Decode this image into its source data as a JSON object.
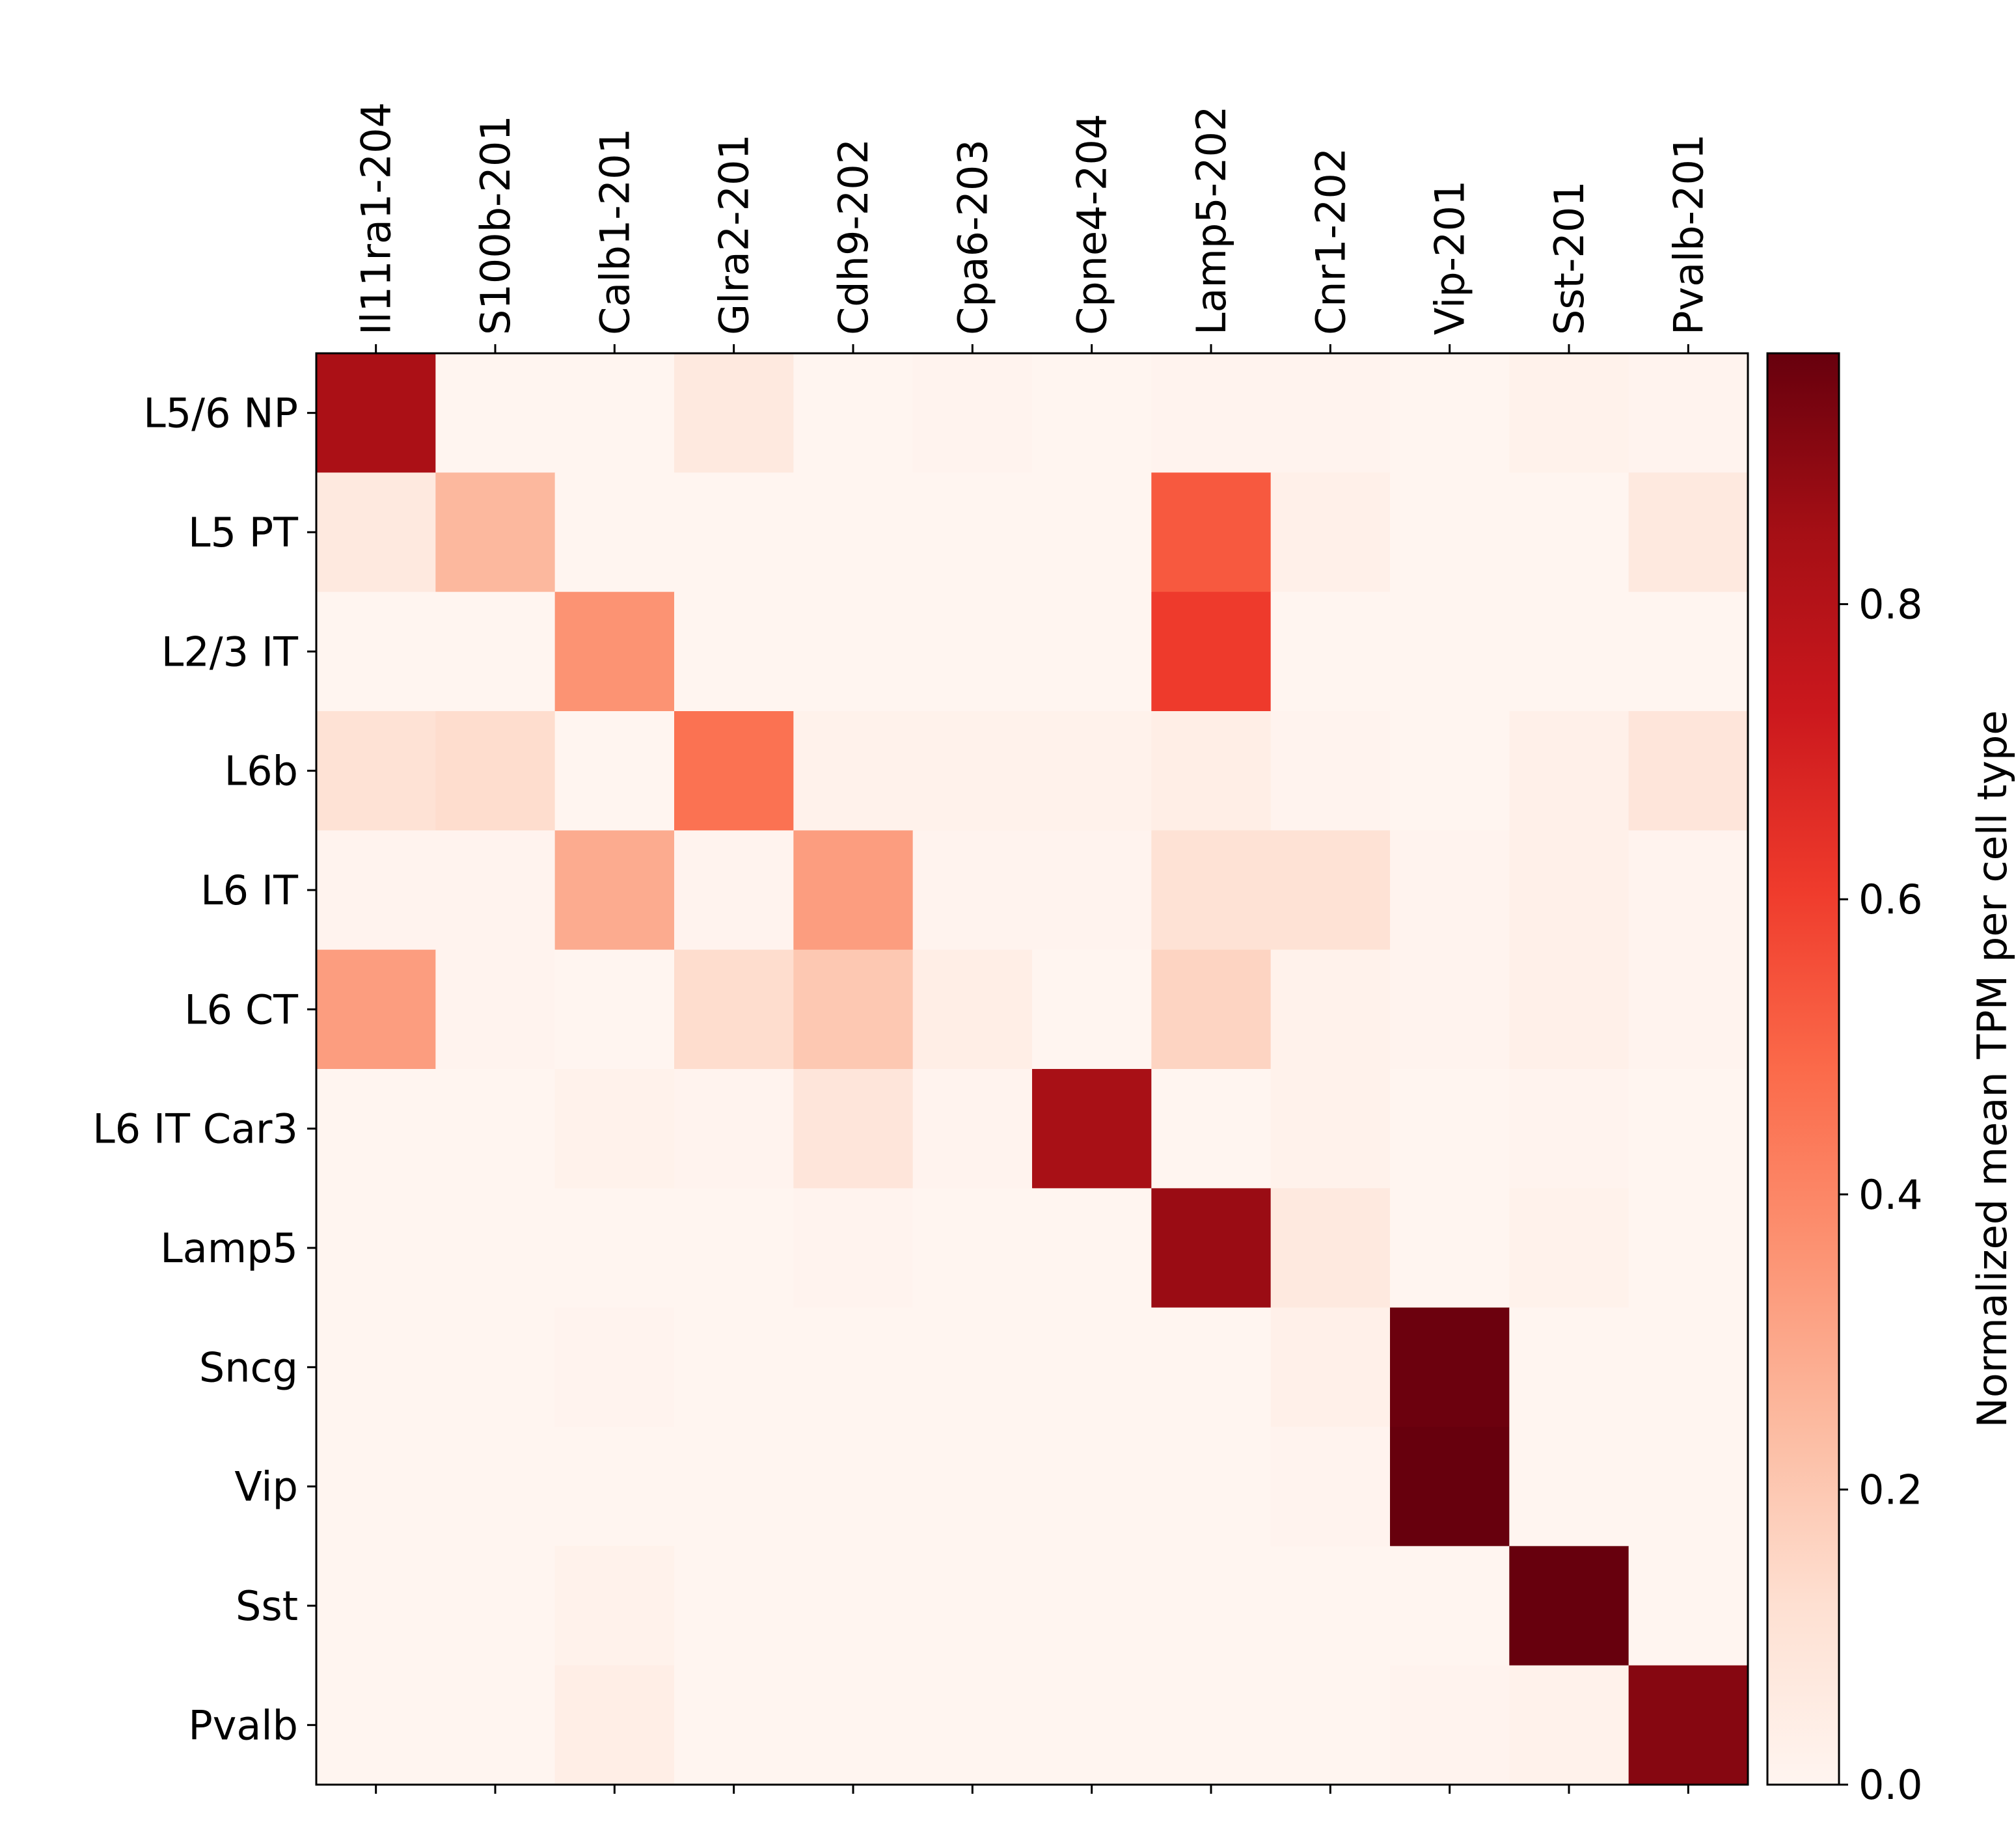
{
  "chart_data": {
    "type": "heatmap",
    "title": "",
    "columns": [
      "Il11ra1-204",
      "S100b-201",
      "Calb1-201",
      "Glra2-201",
      "Cdh9-202",
      "Cpa6-203",
      "Cpne4-204",
      "Lamp5-202",
      "Cnr1-202",
      "Vip-201",
      "Sst-201",
      "Pvalb-201"
    ],
    "rows": [
      "L5/6 NP",
      "L5 PT",
      "L2/3 IT",
      "L6b",
      "L6 IT",
      "L6 CT",
      "L6 IT Car3",
      "Lamp5",
      "Sncg",
      "Vip",
      "Sst",
      "Pvalb"
    ],
    "values": [
      [
        0.83,
        0.0,
        0.0,
        0.07,
        0.0,
        0.01,
        0.0,
        0.01,
        0.01,
        0.0,
        0.02,
        0.01
      ],
      [
        0.07,
        0.25,
        0.0,
        0.0,
        0.0,
        0.0,
        0.0,
        0.53,
        0.03,
        0.0,
        0.0,
        0.07
      ],
      [
        0.0,
        0.0,
        0.36,
        0.0,
        0.0,
        0.0,
        0.0,
        0.61,
        0.0,
        0.0,
        0.0,
        0.0
      ],
      [
        0.11,
        0.13,
        0.0,
        0.46,
        0.02,
        0.02,
        0.02,
        0.04,
        0.01,
        0.0,
        0.03,
        0.09
      ],
      [
        0.01,
        0.01,
        0.29,
        0.01,
        0.33,
        0.01,
        0.01,
        0.11,
        0.11,
        0.01,
        0.03,
        0.01
      ],
      [
        0.33,
        0.01,
        0.0,
        0.13,
        0.2,
        0.04,
        0.0,
        0.16,
        0.02,
        0.01,
        0.03,
        0.01
      ],
      [
        0.0,
        0.0,
        0.02,
        0.01,
        0.09,
        0.01,
        0.84,
        0.0,
        0.02,
        0.0,
        0.01,
        0.0
      ],
      [
        0.0,
        0.0,
        0.0,
        0.0,
        0.01,
        0.0,
        0.0,
        0.87,
        0.07,
        0.0,
        0.02,
        0.0
      ],
      [
        0.0,
        0.0,
        0.01,
        0.0,
        0.0,
        0.0,
        0.0,
        0.0,
        0.03,
        0.96,
        0.0,
        0.0
      ],
      [
        0.0,
        0.0,
        0.0,
        0.0,
        0.0,
        0.0,
        0.0,
        0.0,
        0.01,
        1.0,
        0.0,
        0.0
      ],
      [
        0.0,
        0.0,
        0.02,
        0.0,
        0.0,
        0.0,
        0.0,
        0.0,
        0.0,
        0.0,
        0.97,
        0.0
      ],
      [
        0.0,
        0.0,
        0.04,
        0.0,
        0.0,
        0.0,
        0.0,
        0.0,
        0.0,
        0.01,
        0.02,
        0.91
      ]
    ],
    "colormap": "Reds",
    "colormap_stops": [
      "#fff5f0",
      "#fee0d2",
      "#fcbba1",
      "#fc9272",
      "#fb6a4a",
      "#ef3b2c",
      "#cb181d",
      "#a50f15",
      "#67000d"
    ],
    "colorbar": {
      "label": "Normalized mean TPM per cell type",
      "range": [
        0.0,
        0.97
      ],
      "ticks": [
        0.0,
        0.2,
        0.4,
        0.6,
        0.8
      ],
      "tick_labels": [
        "0.0",
        "0.2",
        "0.4",
        "0.6",
        "0.8"
      ]
    },
    "x_tick_position": "top",
    "grid": false
  }
}
